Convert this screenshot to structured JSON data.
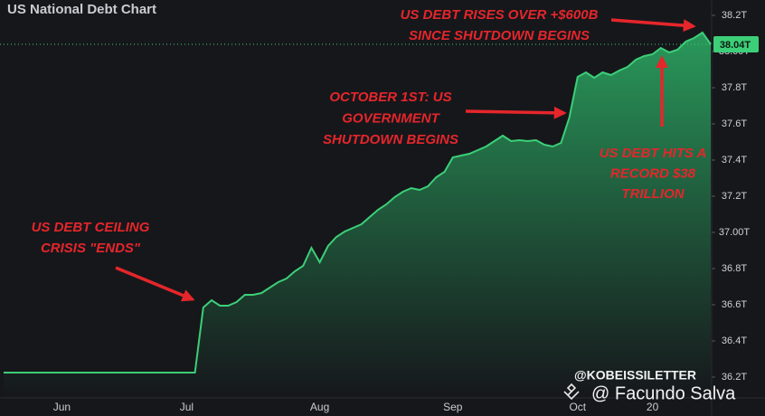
{
  "chart_data": {
    "type": "area",
    "title": "US National Debt Chart",
    "categories": [
      null,
      null,
      null,
      null,
      null,
      null,
      null,
      "Jun",
      null,
      null,
      null,
      null,
      null,
      null,
      null,
      null,
      null,
      null,
      null,
      null,
      null,
      null,
      "Jul",
      null,
      null,
      null,
      null,
      null,
      null,
      null,
      null,
      null,
      null,
      null,
      null,
      null,
      null,
      null,
      "Aug",
      null,
      null,
      null,
      null,
      null,
      null,
      null,
      null,
      null,
      null,
      null,
      null,
      null,
      null,
      null,
      "Sep",
      null,
      null,
      null,
      null,
      null,
      null,
      null,
      null,
      null,
      null,
      null,
      null,
      null,
      null,
      "Oct",
      null,
      null,
      null,
      null,
      null,
      null,
      null,
      null,
      "20",
      null,
      null,
      null,
      null,
      null,
      null,
      null
    ],
    "values": [
      36.225,
      36.225,
      36.225,
      36.225,
      36.225,
      36.225,
      36.225,
      36.225,
      36.225,
      36.225,
      36.225,
      36.225,
      36.225,
      36.225,
      36.225,
      36.225,
      36.225,
      36.225,
      36.225,
      36.225,
      36.225,
      36.225,
      36.225,
      36.225,
      36.585,
      36.625,
      36.595,
      36.595,
      36.615,
      36.655,
      36.655,
      36.665,
      36.695,
      36.725,
      36.745,
      36.785,
      36.815,
      36.915,
      36.835,
      36.925,
      36.975,
      37.005,
      37.025,
      37.045,
      37.085,
      37.125,
      37.155,
      37.195,
      37.225,
      37.245,
      37.235,
      37.255,
      37.305,
      37.335,
      37.415,
      37.425,
      37.435,
      37.455,
      37.475,
      37.505,
      37.535,
      37.505,
      37.51,
      37.505,
      37.51,
      37.485,
      37.475,
      37.495,
      37.635,
      37.86,
      37.885,
      37.855,
      37.885,
      37.87,
      37.895,
      37.915,
      37.955,
      37.975,
      37.985,
      38.02,
      37.995,
      38.01,
      38.055,
      38.075,
      38.105,
      38.04
    ],
    "color": "#3ccf78",
    "ylim": [
      36.085,
      38.285
    ],
    "yticks": [
      {
        "value": 36.2,
        "label": "36.2T"
      },
      {
        "value": 36.4,
        "label": "36.4T"
      },
      {
        "value": 36.6,
        "label": "36.6T"
      },
      {
        "value": 36.8,
        "label": "36.8T"
      },
      {
        "value": 37.0,
        "label": "37.00T"
      },
      {
        "value": 37.2,
        "label": "37.2T"
      },
      {
        "value": 37.4,
        "label": "37.4T"
      },
      {
        "value": 37.6,
        "label": "37.6T"
      },
      {
        "value": 37.8,
        "label": "37.8T"
      },
      {
        "value": 38.0,
        "label": "38.00T"
      },
      {
        "value": 38.2,
        "label": "38.2T"
      }
    ],
    "price_line": {
      "value": 38.04,
      "label": "38.04T"
    },
    "grid": false,
    "annotations": [
      {
        "lines": [
          "US DEBT CEILING",
          "CRISIS \"ENDS\""
        ],
        "target_index": 24
      },
      {
        "lines": [
          "OCTOBER 1ST: US",
          "GOVERNMENT",
          "SHUTDOWN BEGINS"
        ],
        "target_index": 68
      },
      {
        "lines": [
          "US DEBT RISES OVER +$600B",
          "SINCE SHUTDOWN BEGINS"
        ],
        "target_index": 83
      },
      {
        "lines": [
          "US DEBT HITS A",
          "RECORD $38",
          "TRILLION"
        ],
        "target_index": 79
      }
    ],
    "watermarks": [
      "@KOBEISSILETTER",
      "@ Facundo Salva"
    ]
  }
}
